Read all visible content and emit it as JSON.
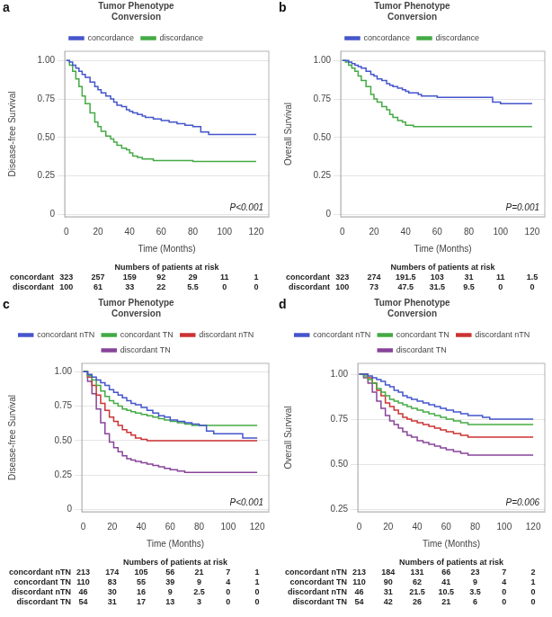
{
  "chart_data": [
    {
      "type": "step",
      "panel_label": "a",
      "xlabel": "Time (Months)",
      "ylabel": "Disease-free Survival",
      "annotations": [
        "P<0.001"
      ],
      "legend": "top",
      "legend_title": "Tumor Phenotype\nConversion",
      "grid": "y",
      "xlim": [
        -1,
        128
      ],
      "xticks": [
        0,
        20,
        40,
        60,
        80,
        100,
        120
      ],
      "ylim": [
        -0.015,
        1.06
      ],
      "yticks": [
        0,
        0.25,
        {
          "value": 0.5,
          "label": "0.50"
        },
        0.75,
        {
          "value": 1,
          "label": "1.00"
        }
      ],
      "series": [
        {
          "name": "concordance",
          "color": "#4455cc",
          "x": [
            0,
            2,
            4,
            6,
            8,
            10,
            12,
            15,
            18,
            20,
            22,
            25,
            28,
            30,
            32,
            35,
            38,
            40,
            42,
            45,
            48,
            50,
            55,
            60,
            65,
            70,
            75,
            80,
            85,
            90,
            100,
            110,
            120
          ],
          "values": [
            1.0,
            0.99,
            0.97,
            0.95,
            0.93,
            0.91,
            0.89,
            0.86,
            0.83,
            0.81,
            0.79,
            0.77,
            0.75,
            0.73,
            0.71,
            0.7,
            0.68,
            0.67,
            0.66,
            0.65,
            0.64,
            0.63,
            0.62,
            0.61,
            0.6,
            0.59,
            0.58,
            0.57,
            0.535,
            0.52,
            0.52,
            0.52,
            0.52
          ]
        },
        {
          "name": "discordance",
          "color": "#44aa44",
          "x": [
            0,
            2,
            4,
            6,
            8,
            10,
            12,
            15,
            18,
            20,
            22,
            25,
            28,
            30,
            32,
            35,
            38,
            40,
            42,
            45,
            48,
            55,
            60,
            65,
            70,
            75,
            80,
            85,
            90,
            100,
            110,
            120
          ],
          "values": [
            1.0,
            0.97,
            0.93,
            0.88,
            0.83,
            0.77,
            0.72,
            0.66,
            0.6,
            0.57,
            0.54,
            0.51,
            0.49,
            0.47,
            0.45,
            0.43,
            0.42,
            0.4,
            0.38,
            0.37,
            0.36,
            0.35,
            0.35,
            0.35,
            0.35,
            0.35,
            0.345,
            0.345,
            0.345,
            0.345,
            0.345,
            0.345
          ]
        }
      ],
      "risk_table": {
        "title": "Numbers of patients at risk",
        "rows": [
          "concordant",
          "discordant"
        ],
        "x": [
          0,
          20,
          40,
          60,
          80,
          100,
          120
        ],
        "values": [
          [
            323,
            257,
            159,
            92,
            29,
            11,
            1
          ],
          [
            100,
            61,
            33,
            22,
            5.5,
            0,
            0
          ]
        ]
      }
    },
    {
      "type": "step",
      "panel_label": "b",
      "xlabel": "Time (Months)",
      "ylabel": "Overall Survival",
      "annotations": [
        "P=0.001"
      ],
      "legend": "top",
      "legend_title": "Tumor Phenotype\nConversion",
      "grid": "y",
      "xlim": [
        -1,
        128
      ],
      "xticks": [
        0,
        20,
        40,
        60,
        80,
        100,
        120
      ],
      "ylim": [
        -0.015,
        1.06
      ],
      "yticks": [
        0,
        0.25,
        {
          "value": 0.5,
          "label": "0.50"
        },
        0.75,
        {
          "value": 1,
          "label": "1.00"
        }
      ],
      "series": [
        {
          "name": "concordance",
          "color": "#4455cc",
          "x": [
            0,
            2,
            4,
            6,
            8,
            10,
            12,
            15,
            18,
            20,
            22,
            25,
            28,
            30,
            32,
            35,
            38,
            40,
            42,
            45,
            48,
            50,
            55,
            60,
            65,
            70,
            75,
            80,
            85,
            90,
            95,
            100,
            110,
            120
          ],
          "values": [
            1.0,
            1.0,
            0.99,
            0.98,
            0.97,
            0.96,
            0.95,
            0.93,
            0.91,
            0.9,
            0.88,
            0.87,
            0.85,
            0.84,
            0.83,
            0.82,
            0.81,
            0.8,
            0.79,
            0.79,
            0.78,
            0.77,
            0.77,
            0.76,
            0.76,
            0.76,
            0.76,
            0.76,
            0.76,
            0.76,
            0.73,
            0.72,
            0.72,
            0.72
          ]
        },
        {
          "name": "discordance",
          "color": "#44aa44",
          "x": [
            0,
            2,
            4,
            6,
            8,
            10,
            12,
            15,
            18,
            20,
            22,
            25,
            28,
            30,
            32,
            35,
            38,
            40,
            45,
            48,
            50,
            55,
            60,
            65,
            70,
            75,
            80,
            85,
            90,
            100,
            110,
            120
          ],
          "values": [
            1.0,
            0.99,
            0.97,
            0.95,
            0.93,
            0.9,
            0.87,
            0.83,
            0.78,
            0.75,
            0.73,
            0.7,
            0.68,
            0.65,
            0.63,
            0.61,
            0.6,
            0.58,
            0.57,
            0.57,
            0.57,
            0.57,
            0.57,
            0.57,
            0.57,
            0.57,
            0.57,
            0.57,
            0.57,
            0.57,
            0.57,
            0.57
          ]
        }
      ],
      "risk_table": {
        "title": "Numbers of patients at risk",
        "rows": [
          "concordant",
          "discordant"
        ],
        "x": [
          0,
          20,
          40,
          60,
          80,
          100,
          120
        ],
        "values": [
          [
            323,
            274,
            191.5,
            103,
            31,
            11,
            1.5
          ],
          [
            100,
            73,
            47.5,
            31.5,
            9.5,
            0,
            0
          ]
        ]
      }
    },
    {
      "type": "step",
      "panel_label": "c",
      "xlabel": "Time (Months)",
      "ylabel": "Disease-free Survival",
      "annotations": [
        "P<0.001"
      ],
      "legend": "top",
      "legend_title": "Tumor Phenotype\nConversion",
      "grid": "y",
      "xlim": [
        -1,
        128
      ],
      "xticks": [
        0,
        20,
        40,
        60,
        80,
        100,
        120
      ],
      "ylim": [
        -0.015,
        1.06
      ],
      "yticks": [
        0,
        0.25,
        {
          "value": 0.5,
          "label": "0.50"
        },
        0.75,
        {
          "value": 1,
          "label": "1.00"
        }
      ],
      "series": [
        {
          "name": "concordant nTN",
          "color": "#4455cc",
          "x": [
            0,
            3,
            6,
            9,
            12,
            15,
            18,
            21,
            24,
            27,
            30,
            33,
            36,
            40,
            44,
            48,
            52,
            56,
            60,
            65,
            70,
            75,
            80,
            85,
            90,
            100,
            110,
            120
          ],
          "values": [
            1.0,
            0.98,
            0.96,
            0.94,
            0.92,
            0.9,
            0.87,
            0.85,
            0.83,
            0.81,
            0.79,
            0.77,
            0.76,
            0.74,
            0.72,
            0.7,
            0.68,
            0.67,
            0.65,
            0.64,
            0.63,
            0.62,
            0.61,
            0.57,
            0.55,
            0.55,
            0.52,
            0.52
          ]
        },
        {
          "name": "concordant TN",
          "color": "#44aa44",
          "x": [
            0,
            3,
            6,
            9,
            12,
            15,
            18,
            21,
            24,
            27,
            30,
            33,
            36,
            40,
            44,
            48,
            52,
            56,
            60,
            65,
            70,
            75,
            80,
            85,
            90,
            100,
            110,
            120
          ],
          "values": [
            1.0,
            0.97,
            0.94,
            0.9,
            0.86,
            0.82,
            0.79,
            0.77,
            0.75,
            0.73,
            0.72,
            0.71,
            0.7,
            0.69,
            0.68,
            0.67,
            0.66,
            0.65,
            0.64,
            0.63,
            0.62,
            0.61,
            0.61,
            0.61,
            0.61,
            0.61,
            0.61,
            0.61
          ]
        },
        {
          "name": "discordant nTN",
          "color": "#cc3333",
          "x": [
            0,
            3,
            6,
            9,
            12,
            15,
            18,
            21,
            24,
            27,
            30,
            33,
            36,
            40,
            44,
            48,
            52,
            56,
            60,
            65,
            70,
            75,
            80,
            85,
            90,
            100,
            110,
            120
          ],
          "values": [
            1.0,
            0.96,
            0.9,
            0.83,
            0.77,
            0.72,
            0.67,
            0.64,
            0.61,
            0.58,
            0.56,
            0.54,
            0.52,
            0.51,
            0.5,
            0.5,
            0.5,
            0.5,
            0.5,
            0.5,
            0.5,
            0.5,
            0.5,
            0.5,
            0.5,
            0.5,
            0.5,
            0.5
          ]
        },
        {
          "name": "discordant TN",
          "color": "#884499",
          "x": [
            0,
            3,
            6,
            9,
            12,
            15,
            18,
            21,
            24,
            27,
            30,
            33,
            36,
            40,
            44,
            48,
            52,
            56,
            60,
            65,
            70,
            75,
            80,
            85,
            90,
            100,
            110,
            120
          ],
          "values": [
            1.0,
            0.93,
            0.84,
            0.73,
            0.63,
            0.55,
            0.49,
            0.45,
            0.42,
            0.39,
            0.37,
            0.36,
            0.35,
            0.34,
            0.33,
            0.32,
            0.31,
            0.3,
            0.29,
            0.28,
            0.27,
            0.27,
            0.27,
            0.27,
            0.27,
            0.27,
            0.27,
            0.27
          ]
        }
      ],
      "risk_table": {
        "title": "Numbers of patients at risk",
        "rows": [
          "concordant nTN",
          "concordant TN",
          "discordant nTN",
          "discordant TN"
        ],
        "x": [
          0,
          20,
          40,
          60,
          80,
          100,
          120
        ],
        "values": [
          [
            213,
            174,
            105,
            56,
            21,
            7,
            1
          ],
          [
            110,
            83,
            55,
            39,
            9,
            4,
            1
          ],
          [
            46,
            30,
            16,
            9,
            2.5,
            0,
            0
          ],
          [
            54,
            31,
            17,
            13,
            3,
            0,
            0
          ]
        ]
      }
    },
    {
      "type": "step",
      "panel_label": "d",
      "xlabel": "Time (Months)",
      "ylabel": "Overall Survival",
      "annotations": [
        "P=0.006"
      ],
      "legend": "top",
      "legend_title": "Tumor Phenotype\nConversion",
      "grid": "y",
      "xlim": [
        -1,
        128
      ],
      "xticks": [
        0,
        20,
        40,
        60,
        80,
        100,
        120
      ],
      "ylim": [
        0.235,
        1.06
      ],
      "yticks": [
        0.25,
        {
          "value": 0.5,
          "label": "0.50"
        },
        0.75,
        {
          "value": 1,
          "label": "1.00"
        }
      ],
      "series": [
        {
          "name": "concordant nTN",
          "color": "#4455cc",
          "x": [
            0,
            3,
            6,
            9,
            12,
            15,
            18,
            21,
            24,
            27,
            30,
            33,
            36,
            40,
            44,
            48,
            52,
            56,
            60,
            65,
            70,
            75,
            80,
            85,
            90,
            100,
            110,
            120
          ],
          "values": [
            1.0,
            1.0,
            0.99,
            0.98,
            0.97,
            0.96,
            0.94,
            0.93,
            0.91,
            0.9,
            0.88,
            0.87,
            0.86,
            0.85,
            0.84,
            0.83,
            0.82,
            0.81,
            0.8,
            0.79,
            0.78,
            0.77,
            0.77,
            0.76,
            0.75,
            0.75,
            0.75,
            0.75
          ]
        },
        {
          "name": "concordant TN",
          "color": "#44aa44",
          "x": [
            0,
            3,
            6,
            9,
            12,
            15,
            18,
            21,
            24,
            27,
            30,
            33,
            36,
            40,
            44,
            48,
            52,
            56,
            60,
            65,
            70,
            75,
            80,
            85,
            90,
            100,
            110,
            120
          ],
          "values": [
            1.0,
            0.99,
            0.97,
            0.95,
            0.92,
            0.9,
            0.88,
            0.86,
            0.85,
            0.84,
            0.83,
            0.82,
            0.81,
            0.8,
            0.79,
            0.78,
            0.77,
            0.76,
            0.75,
            0.74,
            0.73,
            0.72,
            0.72,
            0.72,
            0.72,
            0.72,
            0.72,
            0.72
          ]
        },
        {
          "name": "discordant nTN",
          "color": "#cc3333",
          "x": [
            0,
            3,
            6,
            9,
            12,
            15,
            18,
            21,
            24,
            27,
            30,
            33,
            36,
            40,
            44,
            48,
            52,
            56,
            60,
            65,
            70,
            75,
            80,
            85,
            90,
            100,
            110,
            120
          ],
          "values": [
            1.0,
            1.0,
            0.98,
            0.95,
            0.91,
            0.88,
            0.84,
            0.82,
            0.8,
            0.78,
            0.76,
            0.75,
            0.74,
            0.73,
            0.72,
            0.71,
            0.7,
            0.69,
            0.68,
            0.67,
            0.66,
            0.65,
            0.65,
            0.65,
            0.65,
            0.65,
            0.65,
            0.65
          ]
        },
        {
          "name": "discordant TN",
          "color": "#884499",
          "x": [
            0,
            3,
            6,
            9,
            12,
            15,
            18,
            21,
            24,
            27,
            30,
            33,
            36,
            40,
            44,
            48,
            52,
            56,
            60,
            65,
            70,
            75,
            80,
            85,
            90,
            100,
            110,
            120
          ],
          "values": [
            1.0,
            0.98,
            0.95,
            0.9,
            0.85,
            0.81,
            0.77,
            0.74,
            0.72,
            0.7,
            0.68,
            0.66,
            0.65,
            0.63,
            0.62,
            0.61,
            0.6,
            0.59,
            0.58,
            0.57,
            0.56,
            0.55,
            0.55,
            0.55,
            0.55,
            0.55,
            0.55,
            0.55
          ]
        }
      ],
      "risk_table": {
        "title": "Numbers of patients at risk",
        "rows": [
          "concordant nTN",
          "concordant TN",
          "discordant nTN",
          "discordant TN"
        ],
        "x": [
          0,
          20,
          40,
          60,
          80,
          100,
          120
        ],
        "values": [
          [
            213,
            184,
            131,
            66,
            23,
            7,
            2
          ],
          [
            110,
            90,
            62,
            41,
            9,
            4,
            1
          ],
          [
            46,
            31,
            21.5,
            10.5,
            3.5,
            0,
            0
          ],
          [
            54,
            42,
            26,
            21,
            6,
            0,
            0
          ]
        ]
      }
    }
  ]
}
